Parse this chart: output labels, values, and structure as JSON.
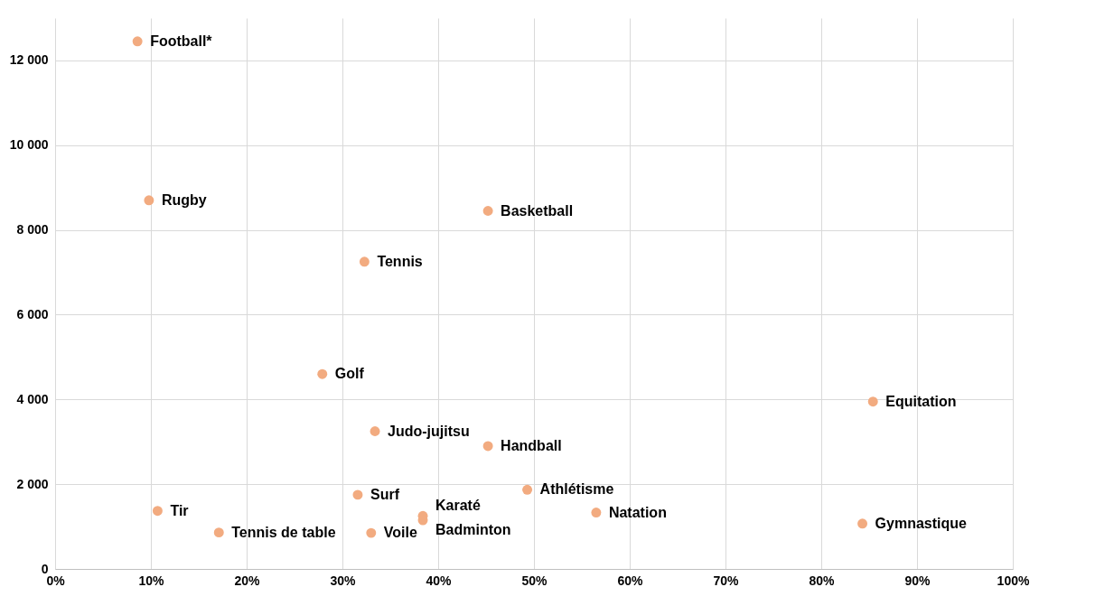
{
  "chart_data": {
    "type": "scatter",
    "marker": "circle",
    "grid": true,
    "legend": false,
    "xlim": [
      0,
      100
    ],
    "xticks": [
      {
        "value": 0,
        "label": "0%"
      },
      {
        "value": 10,
        "label": "10%"
      },
      {
        "value": 20,
        "label": "20%"
      },
      {
        "value": 30,
        "label": "30%"
      },
      {
        "value": 40,
        "label": "40%"
      },
      {
        "value": 50,
        "label": "50%"
      },
      {
        "value": 60,
        "label": "60%"
      },
      {
        "value": 70,
        "label": "70%"
      },
      {
        "value": 80,
        "label": "80%"
      },
      {
        "value": 90,
        "label": "90%"
      },
      {
        "value": 100,
        "label": "100%"
      }
    ],
    "ylim": [
      0,
      13000
    ],
    "yticks": [
      {
        "value": 0,
        "label": "0"
      },
      {
        "value": 2000,
        "label": "2 000"
      },
      {
        "value": 4000,
        "label": "4 000"
      },
      {
        "value": 6000,
        "label": "6 000"
      },
      {
        "value": 8000,
        "label": "8 000"
      },
      {
        "value": 10000,
        "label": "10 000"
      },
      {
        "value": 12000,
        "label": "12 000"
      }
    ],
    "series": [
      {
        "color": "#f2ab80",
        "x": [
          8.6,
          9.8,
          45.2,
          32.3,
          27.9,
          85.4,
          33.4,
          45.2,
          31.6,
          38.4,
          49.3,
          38.4,
          56.5,
          84.3,
          10.7,
          17.1,
          33.0
        ],
        "values": [
          12450,
          8700,
          8450,
          7250,
          4600,
          3950,
          3250,
          2900,
          1750,
          1250,
          1870,
          1150,
          1330,
          1070,
          1370,
          860,
          850
        ]
      }
    ],
    "annotations": [
      {
        "text": "Football*",
        "x": 8.6,
        "y": 12450
      },
      {
        "text": "Rugby",
        "x": 9.8,
        "y": 8700
      },
      {
        "text": "Basketball",
        "x": 45.2,
        "y": 8450
      },
      {
        "text": "Tennis",
        "x": 32.3,
        "y": 7250
      },
      {
        "text": "Golf",
        "x": 27.9,
        "y": 4600
      },
      {
        "text": "Equitation",
        "x": 85.4,
        "y": 3950
      },
      {
        "text": "Judo-jujitsu",
        "x": 33.4,
        "y": 3250
      },
      {
        "text": "Handball",
        "x": 45.2,
        "y": 2900
      },
      {
        "text": "Surf",
        "x": 31.6,
        "y": 1750
      },
      {
        "text": "Karaté",
        "x": 38.4,
        "y": 1250
      },
      {
        "text": "Athlétisme",
        "x": 49.3,
        "y": 1870
      },
      {
        "text": "Badminton",
        "x": 38.4,
        "y": 1150
      },
      {
        "text": "Natation",
        "x": 56.5,
        "y": 1330
      },
      {
        "text": "Gymnastique",
        "x": 84.3,
        "y": 1070
      },
      {
        "text": "Tir",
        "x": 10.7,
        "y": 1370
      },
      {
        "text": "Tennis de table",
        "x": 17.1,
        "y": 860
      },
      {
        "text": "Voile",
        "x": 33.0,
        "y": 850
      }
    ]
  }
}
